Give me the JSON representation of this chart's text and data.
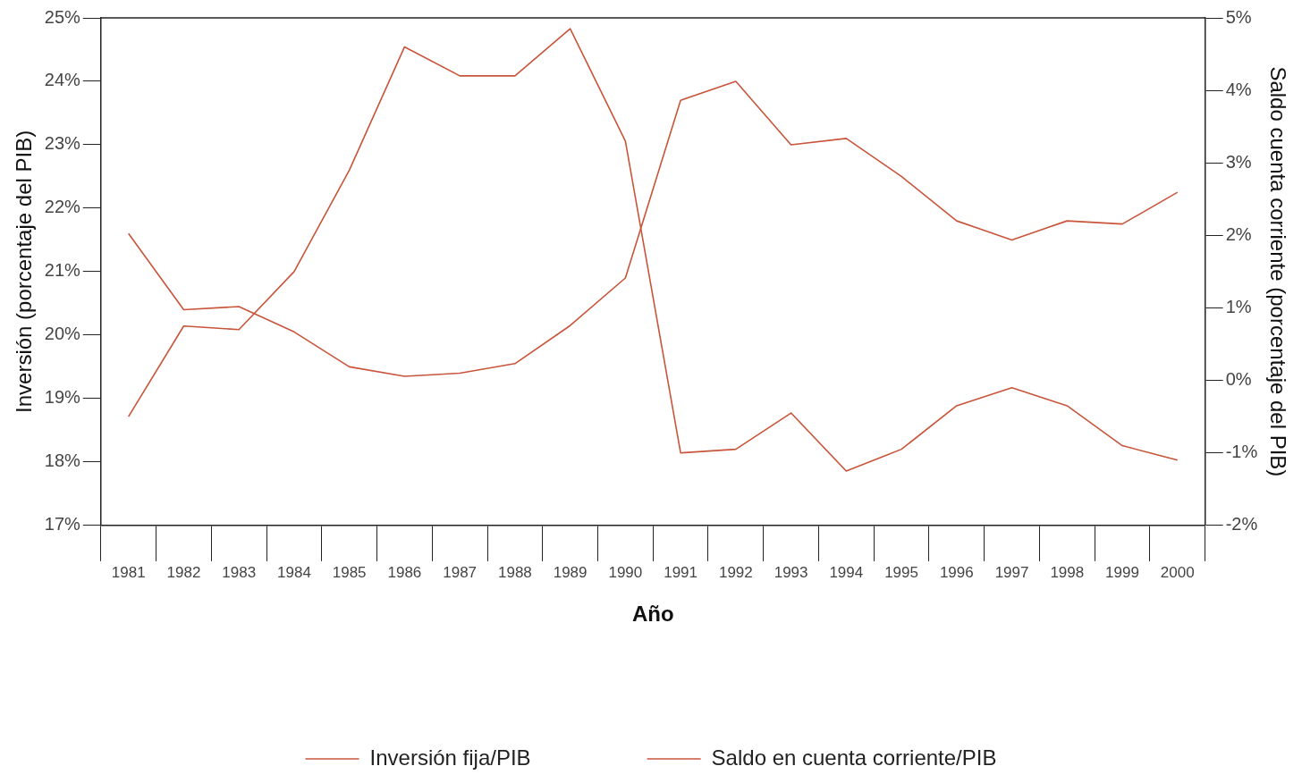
{
  "chart_data": {
    "type": "line",
    "xlabel": "Año",
    "ylabel": "Inversión (porcentaje del PIB)",
    "y2label": "Saldo cuenta corriente (porcentaje del PIB)",
    "categories": [
      "1981",
      "1982",
      "1983",
      "1984",
      "1985",
      "1986",
      "1987",
      "1988",
      "1989",
      "1990",
      "1991",
      "1992",
      "1993",
      "1994",
      "1995",
      "1996",
      "1997",
      "1998",
      "1999",
      "2000"
    ],
    "series": [
      {
        "name": "Inversión fija/PIB",
        "color": "#c8553a",
        "values": [
          21.6,
          20.4,
          20.45,
          20.05,
          19.5,
          19.35,
          19.4,
          19.55,
          20.15,
          20.9,
          23.7,
          24.0,
          23.0,
          23.1,
          22.5,
          21.8,
          21.5,
          21.8,
          21.75,
          22.25
        ]
      },
      {
        "name": "Saldo en cuenta corriente/PIB",
        "color": "#c8553a",
        "axis": "y2",
        "values": [
          -0.5,
          0.75,
          0.7,
          1.5,
          2.9,
          4.6,
          4.2,
          4.2,
          4.85,
          3.3,
          -1.0,
          -0.95,
          -0.45,
          -1.25,
          -0.95,
          -0.35,
          -0.1,
          -0.35,
          -0.9,
          -1.1
        ]
      }
    ],
    "ylim": [
      17,
      25
    ],
    "yticks": [
      {
        "value": 17,
        "label": "17%"
      },
      {
        "value": 18,
        "label": "18%"
      },
      {
        "value": 19,
        "label": "19%"
      },
      {
        "value": 20,
        "label": "20%"
      },
      {
        "value": 21,
        "label": "21%"
      },
      {
        "value": 22,
        "label": "22%"
      },
      {
        "value": 23,
        "label": "23%"
      },
      {
        "value": 24,
        "label": "24%"
      },
      {
        "value": 25,
        "label": "25%"
      }
    ],
    "y2lim": [
      -2,
      5
    ],
    "y2ticks": [
      {
        "value": -2,
        "label": "-2%"
      },
      {
        "value": -1,
        "label": "-1%"
      },
      {
        "value": 0,
        "label": "0%"
      },
      {
        "value": 1,
        "label": "1%"
      },
      {
        "value": 2,
        "label": "2%"
      },
      {
        "value": 3,
        "label": "3%"
      },
      {
        "value": 4,
        "label": "4%"
      },
      {
        "value": 5,
        "label": "5%"
      }
    ],
    "grid": false,
    "legend": "bottom",
    "marker": "none",
    "line_style": "solid"
  }
}
